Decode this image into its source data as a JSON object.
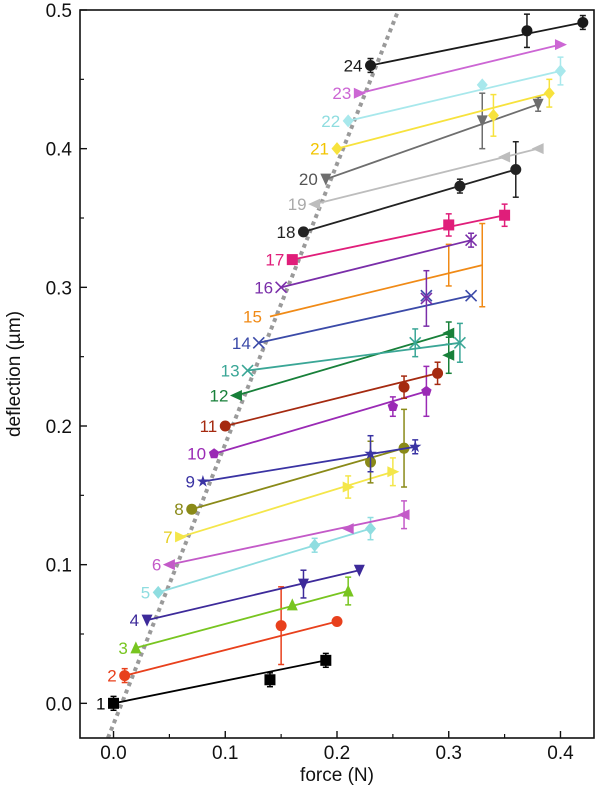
{
  "chart_data": {
    "type": "line",
    "xlabel": "force (N)",
    "ylabel": "deflection (µm)",
    "xlim": [
      -0.03,
      0.43
    ],
    "ylim": [
      -0.025,
      0.5
    ],
    "xticks": [
      0.0,
      0.1,
      0.2,
      0.3,
      0.4
    ],
    "xtick_labels": [
      "0.0",
      "0.1",
      "0.2",
      "0.3",
      "0.4"
    ],
    "yticks": [
      0.0,
      0.1,
      0.2,
      0.3,
      0.4,
      0.5
    ],
    "ytick_labels": [
      "0.0",
      "0.1",
      "0.2",
      "0.3",
      "0.4",
      "0.5"
    ],
    "reference_line": {
      "style": "dotted",
      "color": "#9a9a9a",
      "points": [
        [
          -0.005,
          -0.025
        ],
        [
          0.255,
          0.5
        ]
      ]
    },
    "series": [
      {
        "name": "1",
        "color": "#000000",
        "marker": "square",
        "points": [
          [
            0.0,
            0.0,
            0.005
          ],
          [
            0.14,
            0.017,
            0.005
          ],
          [
            0.19,
            0.031,
            0.005
          ]
        ]
      },
      {
        "name": "2",
        "color": "#e8401c",
        "marker": "circle",
        "points": [
          [
            0.01,
            0.02,
            0.005
          ],
          [
            0.15,
            0.056,
            0.028
          ],
          [
            0.2,
            0.059,
            0.0
          ]
        ]
      },
      {
        "name": "3",
        "color": "#78c520",
        "marker": "triangle-up",
        "points": [
          [
            0.02,
            0.04,
            0.0
          ],
          [
            0.16,
            0.071,
            0.0
          ],
          [
            0.21,
            0.081,
            0.01
          ]
        ]
      },
      {
        "name": "4",
        "color": "#3d2a9a",
        "marker": "triangle-down",
        "points": [
          [
            0.03,
            0.06,
            0.0
          ],
          [
            0.17,
            0.086,
            0.01
          ],
          [
            0.22,
            0.096,
            0.0
          ]
        ]
      },
      {
        "name": "5",
        "color": "#8fdde0",
        "marker": "diamond",
        "points": [
          [
            0.04,
            0.08,
            0.0
          ],
          [
            0.18,
            0.114,
            0.005
          ],
          [
            0.23,
            0.126,
            0.008
          ]
        ]
      },
      {
        "name": "6",
        "color": "#c35ac8",
        "marker": "triangle-left",
        "points": [
          [
            0.05,
            0.1,
            0.0
          ],
          [
            0.21,
            0.126,
            0.0
          ],
          [
            0.26,
            0.136,
            0.01
          ]
        ]
      },
      {
        "name": "7",
        "color": "#f4e64a",
        "marker": "triangle-right",
        "points": [
          [
            0.06,
            0.12,
            0.0
          ],
          [
            0.21,
            0.156,
            0.008
          ],
          [
            0.25,
            0.167,
            0.01
          ]
        ]
      },
      {
        "name": "8",
        "color": "#8a8a18",
        "marker": "circle",
        "points": [
          [
            0.07,
            0.14,
            0.0
          ],
          [
            0.23,
            0.174,
            0.015
          ],
          [
            0.26,
            0.184,
            0.028
          ]
        ]
      },
      {
        "name": "9",
        "color": "#3a33a3",
        "marker": "star",
        "points": [
          [
            0.08,
            0.16,
            0.0
          ],
          [
            0.23,
            0.18,
            0.013
          ],
          [
            0.27,
            0.185,
            0.005
          ]
        ]
      },
      {
        "name": "10",
        "color": "#9a2ab5",
        "marker": "pentagon",
        "points": [
          [
            0.09,
            0.18,
            0.0
          ],
          [
            0.25,
            0.214,
            0.007
          ],
          [
            0.28,
            0.225,
            0.018
          ]
        ]
      },
      {
        "name": "11",
        "color": "#a52a10",
        "marker": "circle",
        "points": [
          [
            0.1,
            0.2,
            0.0
          ],
          [
            0.26,
            0.228,
            0.008
          ],
          [
            0.29,
            0.238,
            0.008
          ]
        ]
      },
      {
        "name": "12",
        "color": "#18803a",
        "marker": "triangle-left",
        "points": [
          [
            0.11,
            0.222,
            0.0
          ],
          [
            0.3,
            0.251,
            0.013
          ],
          [
            0.3,
            0.267,
            0.008
          ]
        ]
      },
      {
        "name": "13",
        "color": "#3aa696",
        "marker": "x",
        "points": [
          [
            0.12,
            0.24,
            0.0
          ],
          [
            0.27,
            0.26,
            0.01
          ],
          [
            0.31,
            0.26,
            0.014
          ]
        ]
      },
      {
        "name": "14",
        "color": "#3b4aa8",
        "marker": "x",
        "points": [
          [
            0.13,
            0.26,
            0.0
          ],
          [
            0.28,
            0.294,
            0.0
          ],
          [
            0.32,
            0.294,
            0.0
          ]
        ]
      },
      {
        "name": "15",
        "color": "#f08a16",
        "marker": "none",
        "points": [
          [
            0.14,
            0.279,
            0.0
          ],
          [
            0.3,
            0.316,
            0.015
          ],
          [
            0.33,
            0.316,
            0.03
          ]
        ]
      },
      {
        "name": "16",
        "color": "#7a2ea9",
        "marker": "x",
        "points": [
          [
            0.15,
            0.3,
            0.0
          ],
          [
            0.28,
            0.292,
            0.02
          ],
          [
            0.32,
            0.334,
            0.005
          ]
        ]
      },
      {
        "name": "17",
        "color": "#e01e7a",
        "marker": "square",
        "points": [
          [
            0.16,
            0.32,
            0.0
          ],
          [
            0.3,
            0.345,
            0.008
          ],
          [
            0.35,
            0.352,
            0.008
          ]
        ]
      },
      {
        "name": "18",
        "color": "#222222",
        "marker": "circle",
        "points": [
          [
            0.17,
            0.34,
            0.0
          ],
          [
            0.31,
            0.373,
            0.005
          ],
          [
            0.36,
            0.385,
            0.02
          ]
        ]
      },
      {
        "name": "19",
        "color": "#bdbdbd",
        "marker": "triangle-left",
        "points": [
          [
            0.18,
            0.36,
            0.0
          ],
          [
            0.35,
            0.394,
            0.0
          ],
          [
            0.38,
            0.4,
            0.0
          ]
        ]
      },
      {
        "name": "20",
        "color": "#6e6e6e",
        "marker": "triangle-down",
        "points": [
          [
            0.19,
            0.378,
            0.0
          ],
          [
            0.33,
            0.42,
            0.02
          ],
          [
            0.38,
            0.432,
            0.005
          ]
        ]
      },
      {
        "name": "21",
        "color": "#f7e23d",
        "marker": "diamond",
        "points": [
          [
            0.2,
            0.4,
            0.0
          ],
          [
            0.34,
            0.424,
            0.015
          ],
          [
            0.39,
            0.44,
            0.01
          ]
        ]
      },
      {
        "name": "22",
        "color": "#a8e8ec",
        "marker": "diamond",
        "points": [
          [
            0.21,
            0.42,
            0.0
          ],
          [
            0.33,
            0.446,
            0.0
          ],
          [
            0.4,
            0.456,
            0.01
          ]
        ]
      },
      {
        "name": "23",
        "color": "#cc66d4",
        "marker": "triangle-right",
        "points": [
          [
            0.22,
            0.44,
            0.0
          ],
          [
            0.4,
            0.475,
            0.0
          ]
        ]
      },
      {
        "name": "24",
        "color": "#1a1a1a",
        "marker": "circle",
        "points": [
          [
            0.23,
            0.46,
            0.005
          ],
          [
            0.37,
            0.485,
            0.012
          ],
          [
            0.42,
            0.491,
            0.005
          ]
        ]
      }
    ],
    "series_label_colors": {
      "1": "#000000",
      "2": "#e8401c",
      "3": "#78c520",
      "4": "#3d2a9a",
      "5": "#8fdde0",
      "6": "#c35ac8",
      "7": "#e6cf20",
      "8": "#8a8a18",
      "9": "#3a33a3",
      "10": "#9a2ab5",
      "11": "#a52a10",
      "12": "#18803a",
      "13": "#3aa696",
      "14": "#3b4aa8",
      "15": "#f08a16",
      "16": "#7a2ea9",
      "17": "#e01e7a",
      "18": "#222222",
      "19": "#aaaaaa",
      "20": "#555555",
      "21": "#f2c400",
      "22": "#8fdde0",
      "23": "#cc66d4",
      "24": "#1a1a1a"
    }
  }
}
